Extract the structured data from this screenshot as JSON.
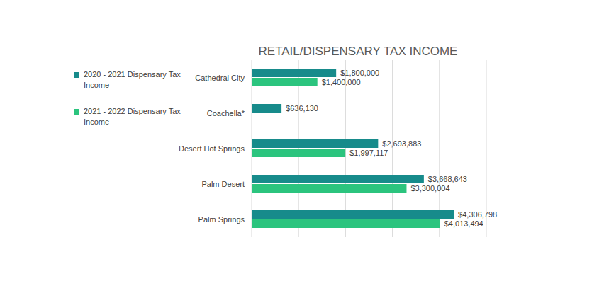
{
  "chart_data": {
    "type": "bar",
    "orientation": "horizontal",
    "title": "RETAIL/DISPENSARY TAX INCOME",
    "categories": [
      "Cathedral City",
      "Coachella*",
      "Desert Hot Springs",
      "Palm Desert",
      "Palm Springs"
    ],
    "series": [
      {
        "name": "2020 - 2021 Dispensary Tax Income",
        "color": "#178b8b",
        "values": [
          1800000,
          636130,
          2693883,
          3668643,
          4306798
        ],
        "value_labels": [
          "$1,800,000",
          "$636,130",
          "$2,693,883",
          "$3,668,643",
          "$4,306,798"
        ]
      },
      {
        "name": "2021 - 2022 Dispensary Tax Income",
        "color": "#2bc47e",
        "values": [
          1400000,
          null,
          1997117,
          3300004,
          4013494
        ],
        "value_labels": [
          "$1,400,000",
          null,
          "$1,997,117",
          "$3,300,004",
          "$4,013,494"
        ]
      }
    ],
    "xlim": [
      0,
      5000000
    ],
    "xticks": [
      0,
      1000000,
      2000000,
      3000000,
      4000000,
      5000000
    ],
    "grid": true,
    "tick_labels": false,
    "data_labels": true,
    "legend": "left"
  }
}
